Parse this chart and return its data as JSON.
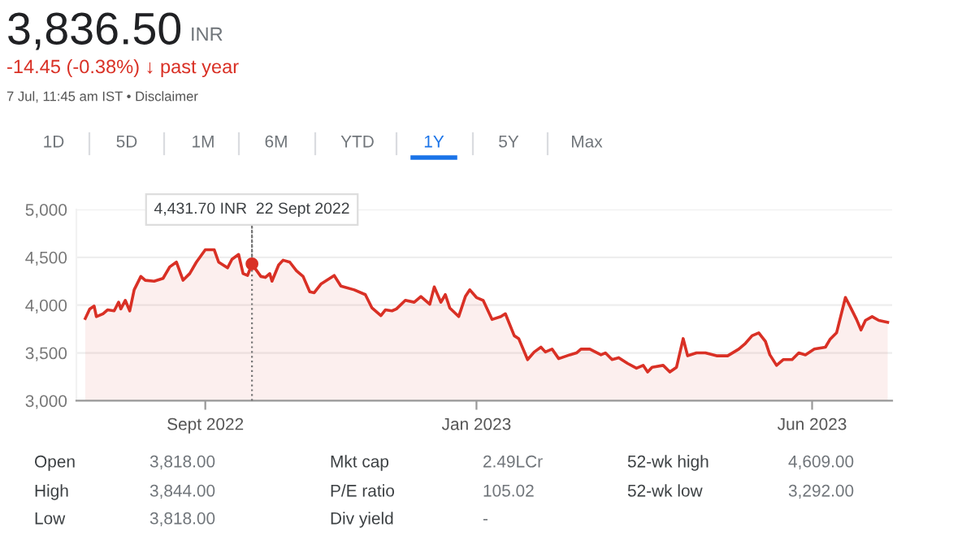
{
  "chart_data": {
    "type": "area",
    "title": "3,836.50",
    "subtitle": "-14.45 (-0.38%) ↓ past year",
    "annotations": [
      "INR",
      "7 Jul, 11:45 am IST • Disclaimer",
      "1D",
      "5D",
      "1M",
      "6M",
      "YTD",
      "1Y",
      "5Y",
      "Max",
      "Open",
      "3,818.00",
      "Mkt cap",
      "2.49LCr",
      "52-wk high",
      "4,609.00",
      "High",
      "3,844.00",
      "P/E ratio",
      "105.02",
      "52-wk low",
      "3,292.00",
      "Low",
      "3,818.00",
      "Div yield",
      "-",
      {
        "text": "4,431.70 INR  22 Sept 2022",
        "x": "2022-09-22",
        "y": 4431.7
      }
    ],
    "x": [
      "2022-07-09",
      "2022-07-11",
      "2022-07-13",
      "2022-07-14",
      "2022-07-17",
      "2022-07-19",
      "2022-07-22",
      "2022-07-24",
      "2022-07-25",
      "2022-07-27",
      "2022-07-29",
      "2022-07-31",
      "2022-08-03",
      "2022-08-05",
      "2022-08-09",
      "2022-08-13",
      "2022-08-16",
      "2022-08-19",
      "2022-08-22",
      "2022-08-25",
      "2022-08-28",
      "2022-09-01",
      "2022-09-05",
      "2022-09-07",
      "2022-09-11",
      "2022-09-13",
      "2022-09-16",
      "2022-09-18",
      "2022-09-20",
      "2022-09-22",
      "2022-09-26",
      "2022-09-28",
      "2022-09-30",
      "2022-10-01",
      "2022-10-04",
      "2022-10-06",
      "2022-10-09",
      "2022-10-12",
      "2022-10-15",
      "2022-10-18",
      "2022-10-20",
      "2022-10-23",
      "2022-10-29",
      "2022-11-01",
      "2022-11-07",
      "2022-11-12",
      "2022-11-15",
      "2022-11-19",
      "2022-11-21",
      "2022-11-24",
      "2022-11-26",
      "2022-11-30",
      "2022-12-04",
      "2022-12-07",
      "2022-12-11",
      "2022-12-13",
      "2022-12-16",
      "2022-12-18",
      "2022-12-20",
      "2022-12-24",
      "2022-12-27",
      "2022-12-29",
      "2023-01-01",
      "2023-01-04",
      "2023-01-08",
      "2023-01-12",
      "2023-01-14",
      "2023-01-18",
      "2023-01-20",
      "2023-01-24",
      "2023-01-27",
      "2023-01-30",
      "2023-02-01",
      "2023-02-04",
      "2023-02-07",
      "2023-02-12",
      "2023-02-15",
      "2023-02-17",
      "2023-02-21",
      "2023-02-26",
      "2023-02-28",
      "2023-03-03",
      "2023-03-06",
      "2023-03-10",
      "2023-03-14",
      "2023-03-17",
      "2023-03-19",
      "2023-03-21",
      "2023-03-26",
      "2023-03-29",
      "2023-04-01",
      "2023-04-04",
      "2023-04-06",
      "2023-04-10",
      "2023-04-14",
      "2023-04-19",
      "2023-04-24",
      "2023-04-29",
      "2023-05-02",
      "2023-05-05",
      "2023-05-08",
      "2023-05-11",
      "2023-05-13",
      "2023-05-16",
      "2023-05-19",
      "2023-05-23",
      "2023-05-26",
      "2023-05-29",
      "2023-06-02",
      "2023-06-07",
      "2023-06-09",
      "2023-06-12",
      "2023-06-16",
      "2023-06-18",
      "2023-06-21",
      "2023-06-23",
      "2023-06-25",
      "2023-06-28",
      "2023-07-01",
      "2023-07-05"
    ],
    "series": [
      {
        "color": "#d93025",
        "values": [
          3860,
          3960,
          3990,
          3880,
          3910,
          3950,
          3940,
          4030,
          3960,
          4050,
          3940,
          4160,
          4300,
          4260,
          4250,
          4280,
          4400,
          4450,
          4260,
          4330,
          4450,
          4580,
          4580,
          4450,
          4390,
          4480,
          4530,
          4330,
          4310,
          4430,
          4300,
          4290,
          4330,
          4250,
          4420,
          4470,
          4450,
          4360,
          4300,
          4140,
          4130,
          4220,
          4310,
          4200,
          4160,
          4110,
          3970,
          3890,
          3950,
          3940,
          3960,
          4050,
          4030,
          4090,
          4010,
          4190,
          4030,
          4110,
          3970,
          3880,
          4090,
          4160,
          4080,
          4050,
          3850,
          3880,
          3910,
          3680,
          3650,
          3430,
          3510,
          3560,
          3510,
          3540,
          3440,
          3480,
          3500,
          3540,
          3540,
          3480,
          3500,
          3430,
          3450,
          3390,
          3340,
          3370,
          3300,
          3350,
          3370,
          3300,
          3350,
          3650,
          3470,
          3500,
          3500,
          3470,
          3470,
          3540,
          3600,
          3680,
          3710,
          3620,
          3480,
          3370,
          3430,
          3430,
          3500,
          3480,
          3540,
          3560,
          3640,
          3710,
          4080,
          3990,
          3850,
          3740,
          3840,
          3880,
          3840,
          3820
        ]
      }
    ],
    "xlim": [
      "2022-07-05",
      "2023-07-07"
    ],
    "xticks": [
      {
        "value": "2022-09-01",
        "label": "Sept 2022"
      },
      {
        "value": "2023-01-01",
        "label": "Jan 2023"
      },
      {
        "value": "2023-06-01",
        "label": "Jun 2023"
      }
    ],
    "ylim": [
      3000,
      5000
    ],
    "yticks": [
      {
        "value": 3000,
        "label": "3,000"
      },
      {
        "value": 3500,
        "label": "3,500"
      },
      {
        "value": 4000,
        "label": "4,000"
      },
      {
        "value": 4500,
        "label": "4,500"
      },
      {
        "value": 5000,
        "label": "5,000"
      }
    ],
    "ref_lines": [
      {
        "axis": "x",
        "value": "2022-09-22",
        "label": null,
        "color": "#777777",
        "line_style": "dotted"
      }
    ],
    "grid": "y"
  }
}
